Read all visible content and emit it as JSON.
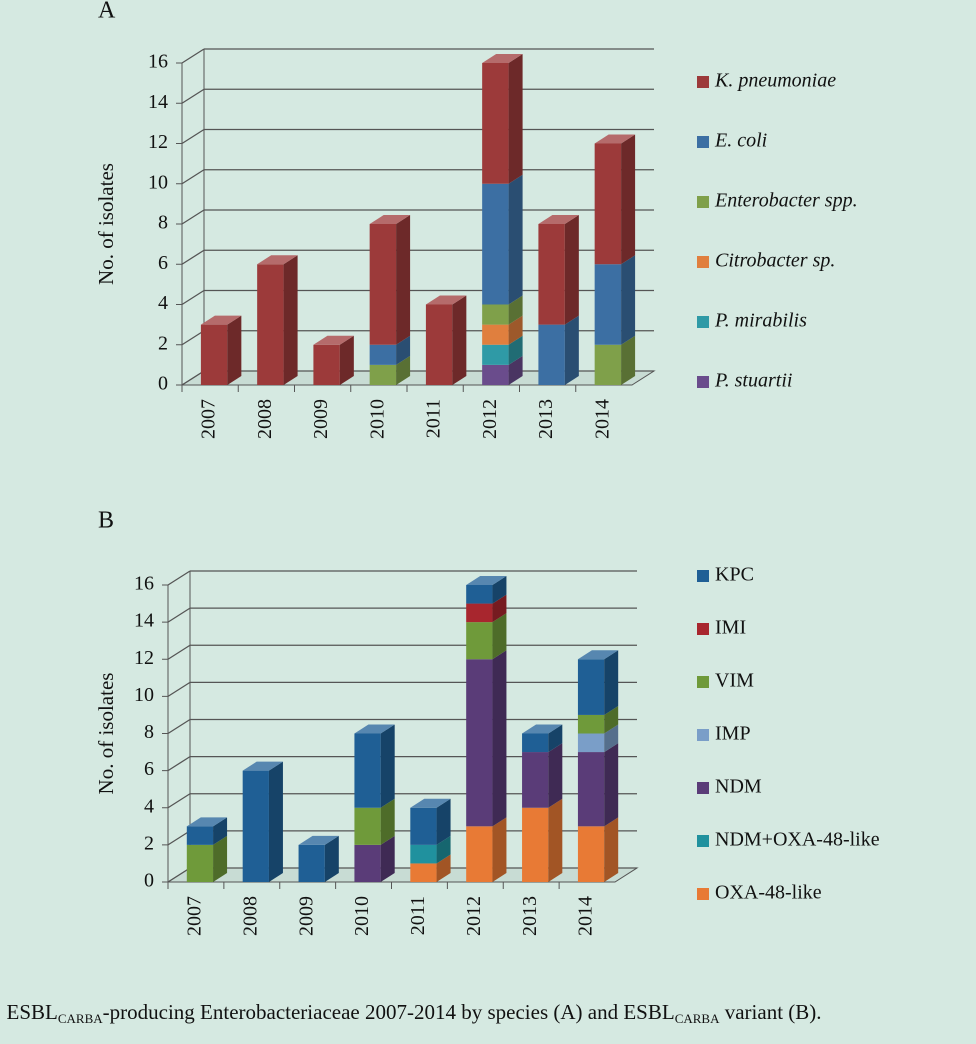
{
  "chart_data": [
    {
      "type": "bar",
      "stacked": true,
      "title": "A",
      "y_label": "No. of isolates",
      "legend_italic": true,
      "categories": [
        "2007",
        "2008",
        "2009",
        "2010",
        "2011",
        "2012",
        "2013",
        "2014"
      ],
      "ylim": [
        0,
        16
      ],
      "yticks": [
        0,
        2,
        4,
        6,
        8,
        10,
        12,
        14,
        16
      ],
      "grid": true,
      "legend": "right",
      "series": [
        {
          "name": "K. pneumoniae",
          "color": "#9c3a3a",
          "values": [
            3,
            6,
            2,
            6,
            4,
            6,
            5,
            6
          ]
        },
        {
          "name": "E. coli",
          "color": "#3c6fa3",
          "values": [
            0,
            0,
            0,
            1,
            0,
            6,
            3,
            4
          ]
        },
        {
          "name": "Enterobacter spp.",
          "color": "#7fa04a",
          "values": [
            0,
            0,
            0,
            1,
            0,
            1,
            0,
            2
          ]
        },
        {
          "name": "Citrobacter sp.",
          "color": "#e07f3e",
          "values": [
            0,
            0,
            0,
            0,
            0,
            1,
            0,
            0
          ]
        },
        {
          "name": "P. mirabilis",
          "color": "#2f9aa6",
          "values": [
            0,
            0,
            0,
            0,
            0,
            1,
            0,
            0
          ]
        },
        {
          "name": "P. stuartii",
          "color": "#6a4c8c",
          "values": [
            0,
            0,
            0,
            0,
            0,
            1,
            0,
            0
          ]
        }
      ]
    },
    {
      "type": "bar",
      "stacked": true,
      "title": "B",
      "y_label": "No. of isolates",
      "legend_italic": false,
      "categories": [
        "2007",
        "2008",
        "2009",
        "2010",
        "2011",
        "2012",
        "2013",
        "2014"
      ],
      "ylim": [
        0,
        16
      ],
      "yticks": [
        0,
        2,
        4,
        6,
        8,
        10,
        12,
        14,
        16
      ],
      "grid": true,
      "legend": "right",
      "series": [
        {
          "name": "KPC",
          "color": "#1f5f95",
          "values": [
            1,
            6,
            2,
            4,
            2,
            1,
            1,
            3
          ]
        },
        {
          "name": "IMI",
          "color": "#a8262e",
          "values": [
            0,
            0,
            0,
            0,
            0,
            1,
            0,
            0
          ]
        },
        {
          "name": "VIM",
          "color": "#6f9a3a",
          "values": [
            2,
            0,
            0,
            2,
            0,
            2,
            0,
            1
          ]
        },
        {
          "name": "IMP",
          "color": "#7a9ec8",
          "values": [
            0,
            0,
            0,
            0,
            0,
            0,
            0,
            1
          ]
        },
        {
          "name": "NDM",
          "color": "#5a3c78",
          "values": [
            0,
            0,
            0,
            2,
            0,
            9,
            3,
            4
          ]
        },
        {
          "name": "NDM+OXA-48-like",
          "color": "#20919e",
          "values": [
            0,
            0,
            0,
            0,
            1,
            0,
            0,
            0
          ]
        },
        {
          "name": "OXA-48-like",
          "color": "#e87a35",
          "values": [
            0,
            0,
            0,
            0,
            1,
            3,
            4,
            3
          ]
        }
      ]
    }
  ],
  "caption": [
    {
      "text": ". ESBL",
      "subscript": false
    },
    {
      "text": "CARBA",
      "subscript": true
    },
    {
      "text": "-producing Enterobacteriaceae 2007-2014 by species (A) and ESBL",
      "subscript": false
    },
    {
      "text": "CARBA",
      "subscript": true
    },
    {
      "text": " variant (B).",
      "subscript": false
    }
  ]
}
